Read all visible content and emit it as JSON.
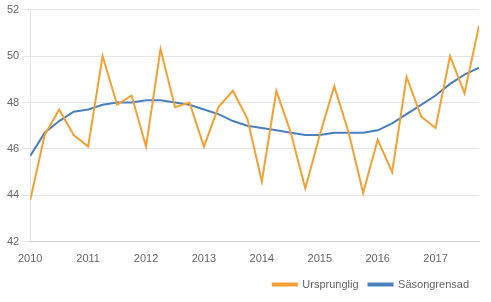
{
  "chart_data": {
    "type": "line",
    "x": [
      2010.0,
      2010.25,
      2010.5,
      2010.75,
      2011.0,
      2011.25,
      2011.5,
      2011.75,
      2012.0,
      2012.25,
      2012.5,
      2012.75,
      2013.0,
      2013.25,
      2013.5,
      2013.75,
      2014.0,
      2014.25,
      2014.5,
      2014.75,
      2015.0,
      2015.25,
      2015.5,
      2015.75,
      2016.0,
      2016.25,
      2016.5,
      2016.75,
      2017.0,
      2017.25,
      2017.5,
      2017.75
    ],
    "series": [
      {
        "name": "Ursprunglig",
        "color": "#f5a033",
        "values": [
          43.8,
          46.6,
          47.7,
          46.6,
          46.1,
          50.0,
          47.9,
          48.3,
          46.1,
          50.3,
          47.8,
          48.0,
          46.1,
          47.8,
          48.5,
          47.3,
          44.6,
          48.5,
          46.7,
          44.3,
          46.6,
          48.7,
          46.7,
          44.1,
          46.4,
          45.0,
          49.1,
          47.4,
          46.9,
          50.0,
          48.4,
          51.3
        ]
      },
      {
        "name": "Säsongrensad",
        "color": "#4a7ebd",
        "values": [
          45.7,
          46.7,
          47.2,
          47.6,
          47.7,
          47.9,
          48.0,
          48.0,
          48.1,
          48.1,
          48.0,
          47.9,
          47.7,
          47.5,
          47.2,
          47.0,
          46.9,
          46.8,
          46.7,
          46.6,
          46.6,
          46.7,
          46.7,
          46.7,
          46.8,
          47.1,
          47.5,
          47.9,
          48.3,
          48.8,
          49.2,
          49.5
        ]
      }
    ],
    "xlim": [
      2010.0,
      2017.75
    ],
    "xticks": [
      2010,
      2011,
      2012,
      2013,
      2014,
      2015,
      2016,
      2017
    ],
    "ylim": [
      42,
      52
    ],
    "yticks": [
      42,
      44,
      46,
      48,
      50,
      52
    ],
    "grid": "y",
    "legend": "lower right"
  }
}
